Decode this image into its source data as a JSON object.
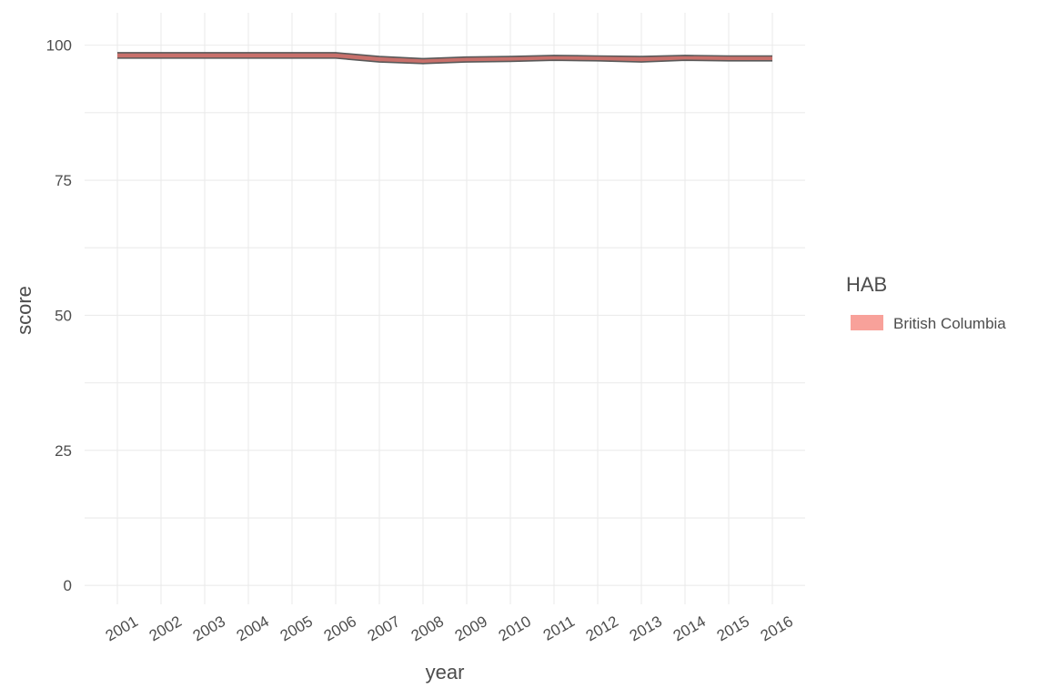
{
  "chart_data": {
    "type": "area",
    "x": [
      2001,
      2002,
      2003,
      2004,
      2005,
      2006,
      2007,
      2008,
      2009,
      2010,
      2011,
      2012,
      2013,
      2014,
      2015,
      2016
    ],
    "series": [
      {
        "name": "British Columbia",
        "upper": [
          98.6,
          98.6,
          98.6,
          98.6,
          98.6,
          98.6,
          97.9,
          97.5,
          97.8,
          97.9,
          98.1,
          98.0,
          97.9,
          98.1,
          98.0,
          98.0
        ],
        "lower": [
          97.6,
          97.6,
          97.6,
          97.6,
          97.6,
          97.6,
          96.9,
          96.6,
          96.9,
          97.0,
          97.2,
          97.1,
          96.9,
          97.2,
          97.1,
          97.1
        ],
        "color": "#f8a19a"
      }
    ],
    "title": "",
    "xlabel": "year",
    "ylabel": "score",
    "ylim": [
      -3.5,
      106
    ],
    "yticks": [
      0,
      25,
      50,
      75,
      100
    ],
    "xtick_labels": [
      "2001",
      "2002",
      "2003",
      "2004",
      "2005",
      "2006",
      "2007",
      "2008",
      "2009",
      "2010",
      "2011",
      "2012",
      "2013",
      "2014",
      "2015",
      "2016"
    ],
    "grid": true,
    "legend": {
      "title": "HAB",
      "placement": "right",
      "entries": [
        "British Columbia"
      ]
    },
    "colors": {
      "fill": "#f8a19a",
      "band_fill": "#c8706b",
      "outline": "#595959",
      "grid": "#ebebeb",
      "text": "#4d4d4d"
    }
  }
}
